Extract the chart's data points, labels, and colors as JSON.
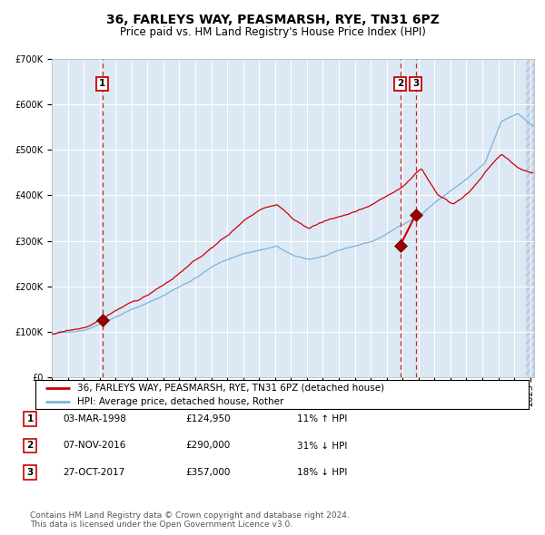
{
  "title": "36, FARLEYS WAY, PEASMARSH, RYE, TN31 6PZ",
  "subtitle": "Price paid vs. HM Land Registry's House Price Index (HPI)",
  "ylim": [
    0,
    700000
  ],
  "yticks": [
    0,
    100000,
    200000,
    300000,
    400000,
    500000,
    600000,
    700000
  ],
  "ytick_labels": [
    "£0",
    "£100K",
    "£200K",
    "£300K",
    "£400K",
    "£500K",
    "£600K",
    "£700K"
  ],
  "bg_color": "#dce9f5",
  "red_line_color": "#cc0000",
  "blue_line_color": "#7ab4d8",
  "dashed_line_color": "#cc0000",
  "sale_dates": [
    "1998-03-03",
    "2016-11-07",
    "2017-10-27"
  ],
  "sale_prices": [
    124950,
    290000,
    357000
  ],
  "sale_labels": [
    "1",
    "2",
    "3"
  ],
  "legend_label_red": "36, FARLEYS WAY, PEASMARSH, RYE, TN31 6PZ (detached house)",
  "legend_label_blue": "HPI: Average price, detached house, Rother",
  "table_rows": [
    [
      "1",
      "03-MAR-1998",
      "£124,950",
      "11% ↑ HPI"
    ],
    [
      "2",
      "07-NOV-2016",
      "£290,000",
      "31% ↓ HPI"
    ],
    [
      "3",
      "27-OCT-2017",
      "£357,000",
      "18% ↓ HPI"
    ]
  ],
  "footer": "Contains HM Land Registry data © Crown copyright and database right 2024.\nThis data is licensed under the Open Government Licence v3.0.",
  "title_fontsize": 10,
  "subtitle_fontsize": 8.5,
  "tick_fontsize": 7,
  "legend_fontsize": 7.5,
  "table_fontsize": 7.5,
  "footer_fontsize": 6.5,
  "hpi_keypoints_t": [
    0.0,
    0.033,
    0.067,
    0.1,
    0.133,
    0.167,
    0.2,
    0.233,
    0.267,
    0.3,
    0.333,
    0.367,
    0.4,
    0.433,
    0.467,
    0.5,
    0.533,
    0.567,
    0.6,
    0.633,
    0.667,
    0.7,
    0.733,
    0.767,
    0.8,
    0.833,
    0.867,
    0.9,
    0.933,
    0.967,
    1.0
  ],
  "hpi_keypoints_v": [
    95000,
    98000,
    105000,
    120000,
    138000,
    155000,
    168000,
    185000,
    205000,
    225000,
    248000,
    265000,
    278000,
    285000,
    292000,
    270000,
    262000,
    270000,
    280000,
    290000,
    300000,
    318000,
    340000,
    360000,
    390000,
    415000,
    440000,
    470000,
    560000,
    580000,
    550000
  ],
  "red_keypoints_t": [
    0.0,
    0.033,
    0.067,
    0.1,
    0.133,
    0.167,
    0.2,
    0.233,
    0.267,
    0.3,
    0.333,
    0.367,
    0.4,
    0.433,
    0.467,
    0.5,
    0.533,
    0.567,
    0.6,
    0.633,
    0.667,
    0.7,
    0.733,
    0.767,
    0.8,
    0.833,
    0.867,
    0.9,
    0.933,
    0.967,
    1.0
  ],
  "red_keypoints_v": [
    95000,
    100000,
    108000,
    125000,
    145000,
    165000,
    180000,
    200000,
    225000,
    250000,
    278000,
    305000,
    340000,
    360000,
    370000,
    340000,
    320000,
    335000,
    345000,
    355000,
    370000,
    390000,
    415000,
    450000,
    400000,
    380000,
    405000,
    450000,
    490000,
    460000,
    450000
  ]
}
